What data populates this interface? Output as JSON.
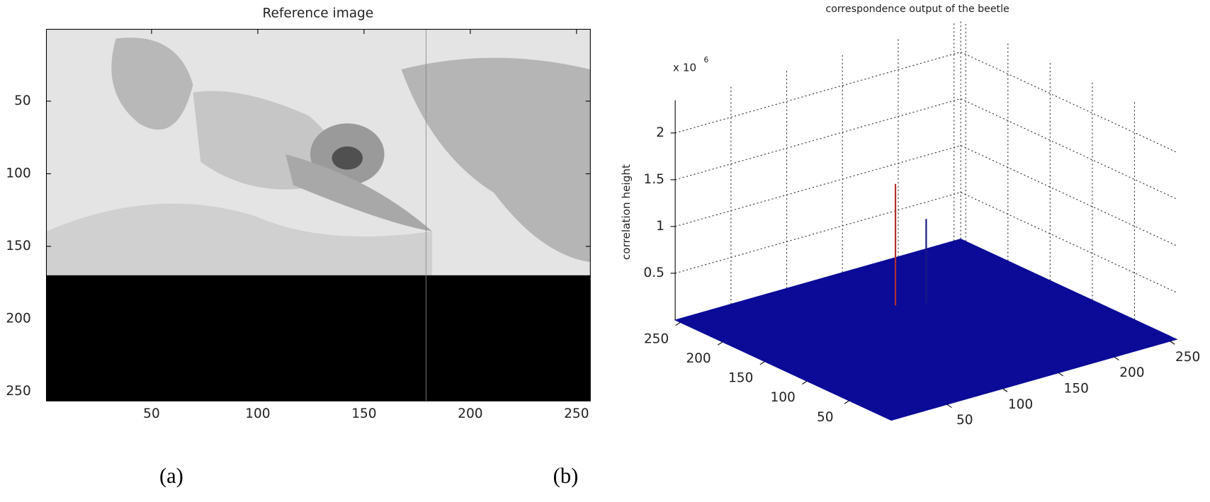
{
  "chart_data": [
    {
      "type": "image",
      "title": "Reference image",
      "xlim": [
        0.5,
        256.5
      ],
      "ylim": [
        0.5,
        256.5
      ],
      "xticks": [
        50,
        100,
        150,
        200,
        250
      ],
      "yticks": [
        50,
        100,
        150,
        200,
        250
      ]
    },
    {
      "type": "surface3d",
      "title": "correspondence output of the beetle",
      "zlabel": "correlation height",
      "z_multiplier": "x 10",
      "z_exponent": "6",
      "xlim": [
        0,
        256
      ],
      "ylim": [
        0,
        256
      ],
      "zlim": [
        0,
        2.35
      ],
      "xticks": [
        50,
        100,
        150,
        200,
        250
      ],
      "yticks": [
        50,
        100,
        150,
        200,
        250
      ],
      "zticks": [
        0.5,
        1,
        1.5,
        2
      ],
      "surface_color": "#0b0b98",
      "points": {
        "x": [
          140,
          160
        ],
        "y": [
          180,
          170
        ],
        "z": [
          1.3,
          0.9
        ],
        "colors": [
          "#b03030",
          "#1a1a80"
        ]
      },
      "grid": true
    }
  ],
  "captions": [
    "(a)",
    "(b)"
  ]
}
